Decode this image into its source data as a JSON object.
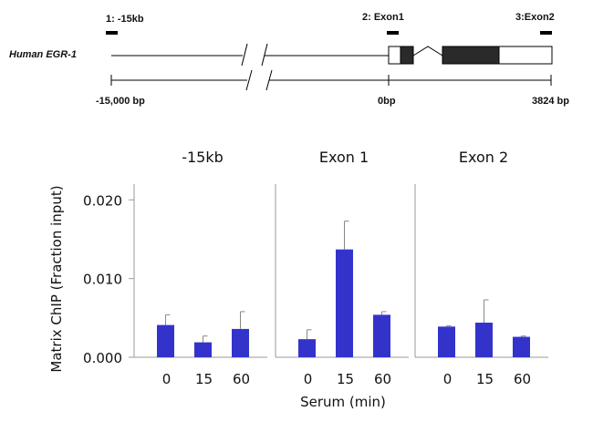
{
  "gene_map": {
    "gene_name": "Human EGR-1",
    "primer_labels": [
      "1: -15kb",
      "2: Exon1",
      "3:Exon2"
    ],
    "scale_labels": [
      "-15,000  bp",
      "0bp",
      "3824 bp"
    ]
  },
  "chart_data": {
    "type": "bar",
    "ylabel": "Matrix ChIP (Fraction input)",
    "xlabel": "Serum (min)",
    "ylim": [
      0,
      0.022
    ],
    "yticks": [
      "0.000",
      "0.010",
      "0.020"
    ],
    "ytick_values": [
      0,
      0.01,
      0.02
    ],
    "categories": [
      "0",
      "15",
      "60"
    ],
    "bar_color": "#3333cc",
    "panels": [
      {
        "title": "-15kb",
        "values": [
          0.0041,
          0.0019,
          0.0036
        ],
        "errors": [
          0.0013,
          0.0008,
          0.0022
        ]
      },
      {
        "title": "Exon 1",
        "values": [
          0.0023,
          0.0137,
          0.0054
        ],
        "errors": [
          0.0012,
          0.0036,
          0.0004
        ]
      },
      {
        "title": "Exon 2",
        "values": [
          0.0039,
          0.0044,
          0.0026
        ],
        "errors": [
          0.0001,
          0.0029,
          0.0001
        ]
      }
    ]
  }
}
